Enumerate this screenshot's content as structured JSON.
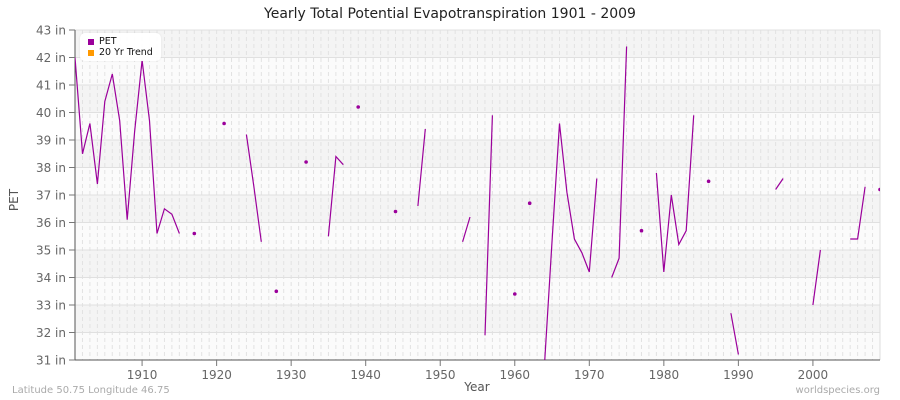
{
  "chart_data": {
    "type": "line",
    "title": "Yearly Total Potential Evapotranspiration 1901 - 2009",
    "xlabel": "Year",
    "ylabel": "PET",
    "xlim": [
      1901,
      2009
    ],
    "ylim": [
      31,
      43
    ],
    "x_ticks": [
      1910,
      1920,
      1930,
      1940,
      1950,
      1960,
      1970,
      1980,
      1990,
      2000
    ],
    "y_ticks": [
      "31 in",
      "32 in",
      "33 in",
      "34 in",
      "35 in",
      "36 in",
      "37 in",
      "38 in",
      "39 in",
      "40 in",
      "41 in",
      "42 in",
      "43 in"
    ],
    "grid": true,
    "legend_position": "top-left",
    "legend": [
      {
        "label": "PET",
        "color": "#9b009b"
      },
      {
        "label": "20 Yr Trend",
        "color": "#ff9900"
      }
    ],
    "series": [
      {
        "name": "PET",
        "color": "#9b009b",
        "x_start": 1901,
        "values": [
          42.0,
          38.5,
          39.6,
          37.4,
          40.4,
          41.4,
          39.7,
          36.1,
          39.3,
          41.9,
          39.7,
          35.6,
          36.5,
          36.3,
          35.6,
          null,
          35.6,
          null,
          null,
          null,
          39.6,
          null,
          null,
          39.2,
          37.3,
          35.3,
          null,
          33.5,
          null,
          null,
          null,
          38.2,
          null,
          null,
          35.5,
          38.4,
          38.1,
          null,
          40.2,
          null,
          null,
          null,
          null,
          36.4,
          null,
          null,
          36.6,
          39.4,
          null,
          null,
          null,
          null,
          35.3,
          36.2,
          null,
          31.9,
          39.9,
          null,
          null,
          33.4,
          null,
          36.7,
          null,
          30.9,
          35.3,
          39.6,
          37.1,
          35.4,
          34.9,
          34.2,
          37.6,
          null,
          34.0,
          34.7,
          42.4,
          null,
          35.7,
          null,
          37.8,
          34.2,
          37.0,
          35.2,
          35.7,
          39.9,
          null,
          37.5,
          null,
          null,
          32.7,
          31.2,
          null,
          null,
          null,
          null,
          37.2,
          37.6,
          null,
          null,
          null,
          33.0,
          35.0,
          null,
          null,
          null,
          35.4,
          35.4,
          37.3,
          null,
          37.2
        ]
      },
      {
        "name": "20 Yr Trend",
        "color": "#ff9900",
        "values": []
      }
    ]
  },
  "footer": {
    "location": "Latitude 50.75 Longitude 46.75",
    "source": "worldspecies.org"
  }
}
